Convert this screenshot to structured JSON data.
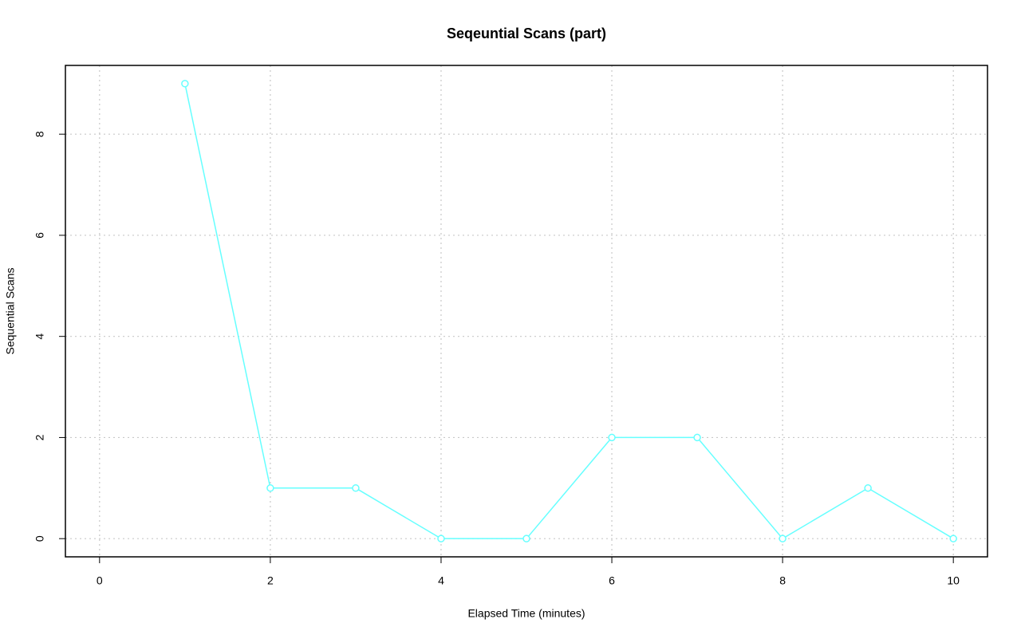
{
  "chart_data": {
    "type": "line",
    "title": "Seqeuntial Scans (part)",
    "x_label": "Elapsed Time (minutes)",
    "y_label": "Sequential Scans",
    "x": [
      1,
      2,
      3,
      4,
      5,
      6,
      7,
      8,
      9,
      10
    ],
    "values": [
      9,
      1,
      1,
      0,
      0,
      2,
      2,
      0,
      1,
      0
    ],
    "color": "#66ffff",
    "xlim": [
      -0.4,
      10.4
    ],
    "xticks": [
      0,
      2,
      4,
      6,
      8,
      10
    ],
    "ylim": [
      -0.36,
      9.36
    ],
    "yticks": [
      0,
      2,
      4,
      6,
      8
    ],
    "grid": true
  }
}
